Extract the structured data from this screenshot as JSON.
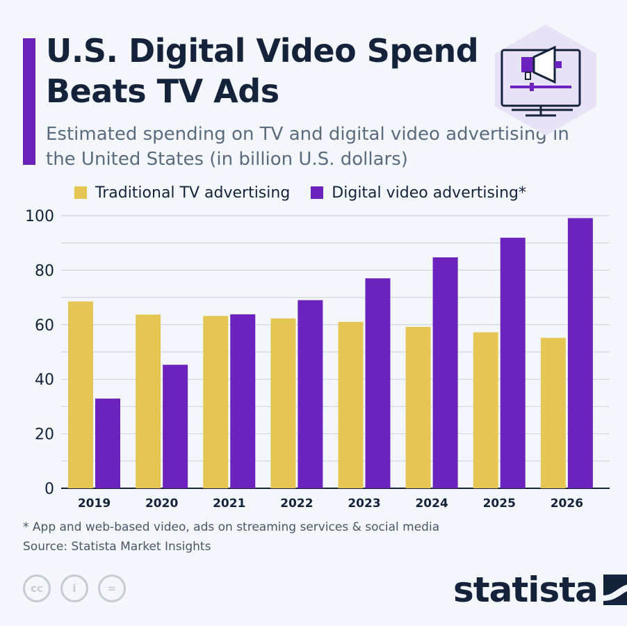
{
  "header": {
    "title": "U.S. Digital Video Spend Beats TV Ads",
    "subtitle": "Estimated spending on TV and digital video advertising in the United States (in billion U.S. dollars)"
  },
  "legend": {
    "tv_label": "Traditional TV advertising",
    "digital_label": "Digital video advertising*"
  },
  "colors": {
    "tv": "#e5c553",
    "digital": "#6c23bd",
    "accent": "#6a22b9",
    "text": "#14233a"
  },
  "chart_data": {
    "type": "bar",
    "categories": [
      "2019",
      "2020",
      "2021",
      "2022",
      "2023",
      "2024",
      "2025",
      "2026"
    ],
    "series": [
      {
        "name": "Traditional TV advertising",
        "values": [
          68.5,
          63.7,
          63.2,
          62.3,
          61.0,
          59.2,
          57.2,
          55.2
        ]
      },
      {
        "name": "Digital video advertising*",
        "values": [
          32.9,
          45.3,
          63.8,
          69.0,
          77.0,
          84.7,
          91.9,
          99.1
        ]
      }
    ],
    "ylim": [
      0,
      100
    ],
    "yticks": [
      0,
      20,
      40,
      60,
      80,
      100
    ],
    "grid": true,
    "legend": "top-left"
  },
  "footer": {
    "footnote": "* App and web-based video, ads on streaming services & social media",
    "source": "Source: Statista Market Insights",
    "cc_labels": [
      "cc",
      "i",
      "="
    ],
    "brand": "statista"
  }
}
